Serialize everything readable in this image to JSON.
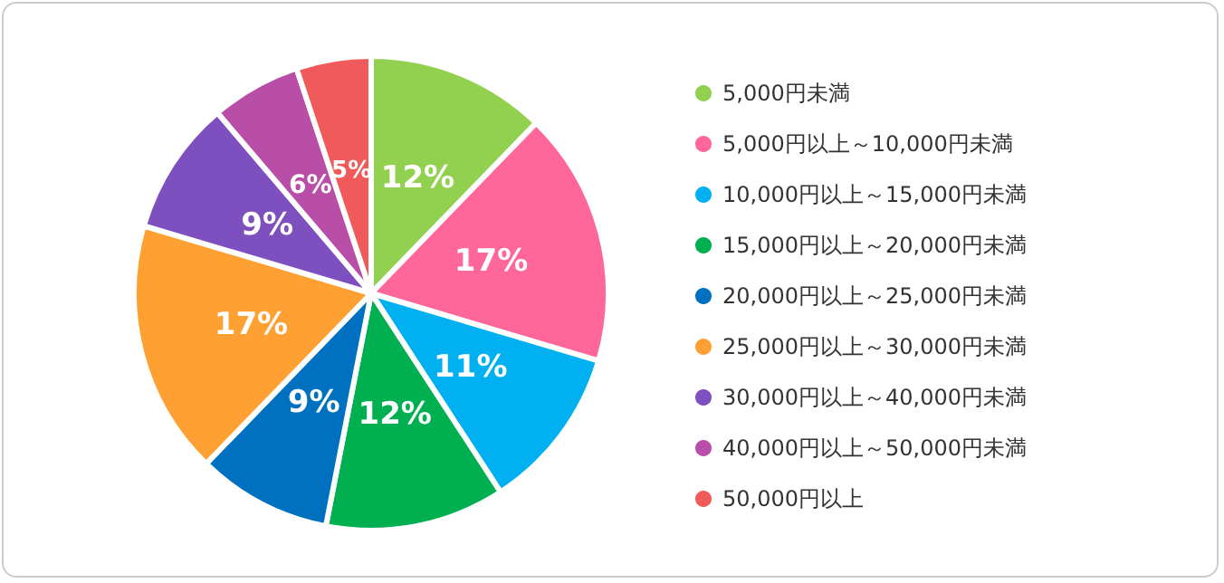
{
  "chart_data": {
    "type": "pie",
    "categories": [
      "5,000円未満",
      "5,000円以上～10,000円未満",
      "10,000円以上～15,000円未満",
      "15,000円以上～20,000円未満",
      "20,000円以上～25,000円未満",
      "25,000円以上～30,000円未満",
      "30,000円以上～40,000円未満",
      "40,000円以上～50,000円未満",
      "50,000円以上"
    ],
    "values": [
      12,
      17,
      11,
      12,
      9,
      17,
      9,
      6,
      5
    ],
    "value_labels": [
      "12%",
      "17%",
      "11%",
      "12%",
      "9%",
      "17%",
      "9%",
      "6%",
      "5%"
    ],
    "colors": [
      "#92d050",
      "#ff6699",
      "#00b0f0",
      "#00b050",
      "#0070c0",
      "#ffa033",
      "#7e4fbf",
      "#b84ea8",
      "#f05a5a"
    ],
    "legend": "right"
  }
}
